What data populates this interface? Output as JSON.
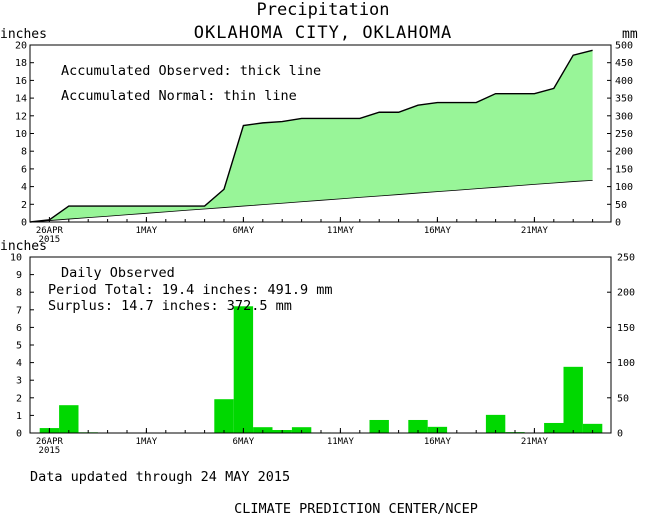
{
  "chart_data": [
    {
      "type": "area",
      "title": "Precipitation",
      "subtitle": "OKLAHOMA CITY, OKLAHOMA",
      "ylabel_left": "inches",
      "ylabel_right": "mm",
      "ylim": [
        0,
        20
      ],
      "ylim_right": [
        0,
        500
      ],
      "yticks_left": [
        0,
        2,
        4,
        6,
        8,
        10,
        12,
        14,
        16,
        18,
        20
      ],
      "yticks_right": [
        0,
        50,
        100,
        150,
        200,
        250,
        300,
        350,
        400,
        450,
        500
      ],
      "x": [
        "2015-04-25",
        "2015-04-26",
        "2015-04-27",
        "2015-04-28",
        "2015-04-29",
        "2015-04-30",
        "2015-05-01",
        "2015-05-02",
        "2015-05-03",
        "2015-05-04",
        "2015-05-05",
        "2015-05-06",
        "2015-05-07",
        "2015-05-08",
        "2015-05-09",
        "2015-05-10",
        "2015-05-11",
        "2015-05-12",
        "2015-05-13",
        "2015-05-14",
        "2015-05-15",
        "2015-05-16",
        "2015-05-17",
        "2015-05-18",
        "2015-05-19",
        "2015-05-20",
        "2015-05-21",
        "2015-05-22",
        "2015-05-23",
        "2015-05-24"
      ],
      "xtick_labels": [
        {
          "date": "2015-04-26",
          "label": "26APR",
          "year": "2015"
        },
        {
          "date": "2015-05-01",
          "label": "1MAY"
        },
        {
          "date": "2015-05-06",
          "label": "6MAY"
        },
        {
          "date": "2015-05-11",
          "label": "11MAY"
        },
        {
          "date": "2015-05-16",
          "label": "16MAY"
        },
        {
          "date": "2015-05-21",
          "label": "21MAY"
        }
      ],
      "series": [
        {
          "name": "Accumulated Observed",
          "style": "thick",
          "values": [
            0.0,
            0.25,
            1.8,
            1.8,
            1.8,
            1.8,
            1.8,
            1.8,
            1.8,
            1.8,
            3.7,
            10.9,
            11.2,
            11.35,
            11.7,
            11.7,
            11.7,
            11.7,
            12.4,
            12.4,
            13.2,
            13.5,
            13.5,
            13.5,
            14.5,
            14.5,
            14.5,
            15.1,
            18.85,
            19.4
          ]
        },
        {
          "name": "Accumulated Normal",
          "style": "thin",
          "values": [
            0.0,
            0.16,
            0.33,
            0.49,
            0.65,
            0.82,
            0.98,
            1.14,
            1.31,
            1.47,
            1.63,
            1.8,
            1.96,
            2.12,
            2.29,
            2.45,
            2.61,
            2.78,
            2.94,
            3.1,
            3.27,
            3.43,
            3.59,
            3.76,
            3.92,
            4.08,
            4.25,
            4.41,
            4.57,
            4.7
          ]
        }
      ],
      "annotations": [
        "Accumulated Observed: thick line",
        "Accumulated Normal: thin line"
      ],
      "fill_color": "#98f598"
    },
    {
      "type": "bar",
      "ylabel_left": "inches",
      "ylim": [
        0,
        10
      ],
      "ylim_right": [
        0,
        250
      ],
      "yticks_left": [
        0,
        1,
        2,
        3,
        4,
        5,
        6,
        7,
        8,
        9,
        10
      ],
      "yticks_right": [
        0,
        50,
        100,
        150,
        200,
        250
      ],
      "x": [
        "2015-04-25",
        "2015-04-26",
        "2015-04-27",
        "2015-04-28",
        "2015-04-29",
        "2015-04-30",
        "2015-05-01",
        "2015-05-02",
        "2015-05-03",
        "2015-05-04",
        "2015-05-05",
        "2015-05-06",
        "2015-05-07",
        "2015-05-08",
        "2015-05-09",
        "2015-05-10",
        "2015-05-11",
        "2015-05-12",
        "2015-05-13",
        "2015-05-14",
        "2015-05-15",
        "2015-05-16",
        "2015-05-17",
        "2015-05-18",
        "2015-05-19",
        "2015-05-20",
        "2015-05-21",
        "2015-05-22",
        "2015-05-23",
        "2015-05-24"
      ],
      "xtick_labels": [
        {
          "date": "2015-04-26",
          "label": "26APR",
          "year": "2015"
        },
        {
          "date": "2015-05-01",
          "label": "1MAY"
        },
        {
          "date": "2015-05-06",
          "label": "6MAY"
        },
        {
          "date": "2015-05-11",
          "label": "11MAY"
        },
        {
          "date": "2015-05-16",
          "label": "16MAY"
        },
        {
          "date": "2015-05-21",
          "label": "21MAY"
        }
      ],
      "series": [
        {
          "name": "Daily Observed",
          "values": [
            0.0,
            0.28,
            1.58,
            0.04,
            0.0,
            0.0,
            0.0,
            0.0,
            0.0,
            0.0,
            1.92,
            7.2,
            0.33,
            0.17,
            0.33,
            0.03,
            0.0,
            0.0,
            0.74,
            0.0,
            0.74,
            0.35,
            0.0,
            0.0,
            1.03,
            0.05,
            0.0,
            0.57,
            3.76,
            0.52
          ]
        }
      ],
      "annotations": {
        "heading": "Daily Observed",
        "period_total": "Period Total:   19.4 inches:   491.9 mm",
        "surplus": "Surplus:   14.7 inches:  372.5 mm"
      },
      "bar_color": "#00d800"
    }
  ],
  "footer": {
    "updated": "Data updated through 24 MAY 2015",
    "credit": "CLIMATE PREDICTION CENTER/NCEP"
  }
}
